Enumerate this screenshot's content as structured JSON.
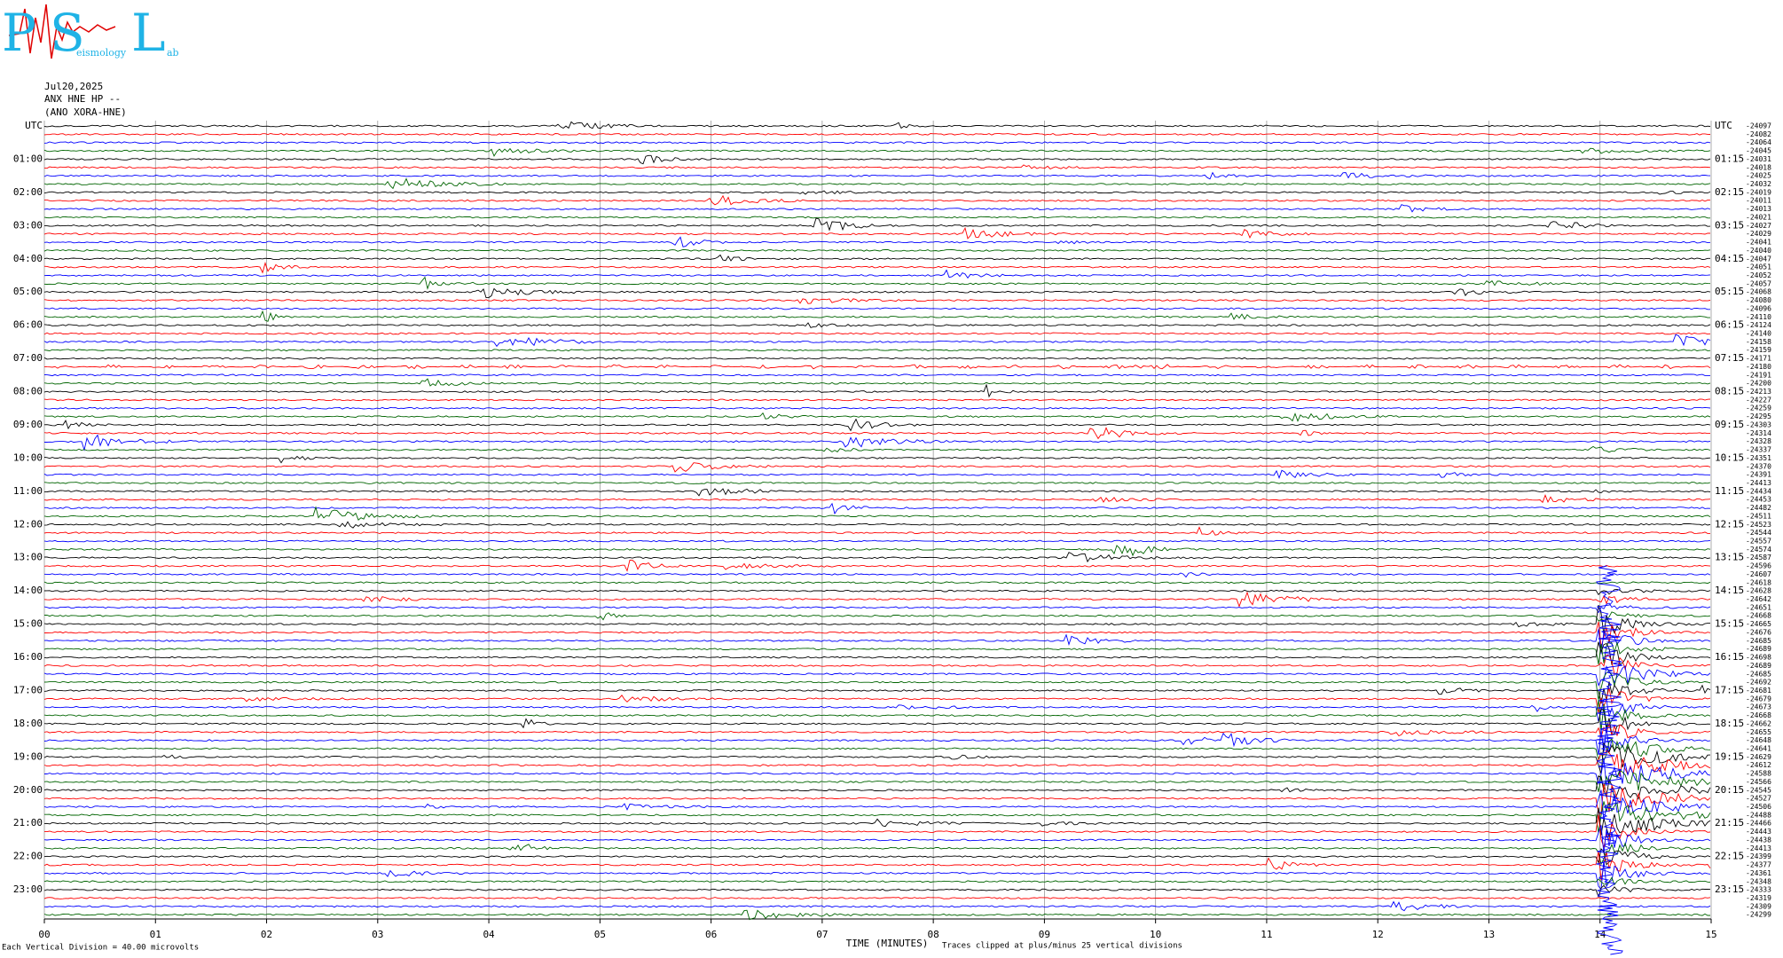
{
  "logo": {
    "letters": [
      "P",
      "S",
      "L"
    ],
    "small_words": [
      "eismology",
      "ab"
    ]
  },
  "header": {
    "date": "Jul20,2025",
    "station": "ANX HNE HP --",
    "network": "(ANO XORA-HNE)"
  },
  "left_labels": [
    "UTC",
    "01:00",
    "02:00",
    "03:00",
    "04:00",
    "05:00",
    "06:00",
    "07:00",
    "08:00",
    "09:00",
    "10:00",
    "11:00",
    "12:00",
    "13:00",
    "14:00",
    "15:00",
    "16:00",
    "17:00",
    "18:00",
    "19:00",
    "20:00",
    "21:00",
    "22:00",
    "23:00"
  ],
  "right_labels": [
    "UTC",
    "01:15",
    "02:15",
    "03:15",
    "04:15",
    "05:15",
    "06:15",
    "07:15",
    "08:15",
    "09:15",
    "10:15",
    "11:15",
    "12:15",
    "13:15",
    "14:15",
    "15:15",
    "16:15",
    "17:15",
    "18:15",
    "19:15",
    "20:15",
    "21:15",
    "22:15",
    "23:15"
  ],
  "trace_offsets": [
    -24097,
    -24082,
    -24064,
    -24045,
    -24031,
    -24018,
    -24025,
    -24032,
    -24019,
    -24011,
    -24013,
    -24021,
    -24027,
    -24029,
    -24041,
    -24040,
    -24047,
    -24051,
    -24052,
    -24057,
    -24068,
    -24080,
    -24096,
    -24110,
    -24124,
    -24140,
    -24158,
    -24159,
    -24171,
    -24180,
    -24191,
    -24200,
    -24213,
    -24227,
    -24259,
    -24295,
    -24303,
    -24314,
    -24328,
    -24337,
    -24351,
    -24370,
    -24391,
    -24413,
    -24434,
    -24453,
    -24482,
    -24511,
    -24523,
    -24544,
    -24557,
    -24574,
    -24587,
    -24596,
    -24607,
    -24618,
    -24628,
    -24642,
    -24651,
    -24668,
    -24665,
    -24676,
    -24685,
    -24689,
    -24698,
    -24689,
    -24685,
    -24692,
    -24681,
    -24679,
    -24673,
    -24668,
    -24662,
    -24655,
    -24648,
    -24641,
    -24629,
    -24612,
    -24588,
    -24566,
    -24545,
    -24527,
    -24506,
    -24488,
    -24466,
    -24443,
    -24438,
    -24413,
    -24399,
    -24377,
    -24361,
    -24348,
    -24333,
    -24319,
    -24309,
    -24299
  ],
  "trace_colors": [
    "#000000",
    "#ff0000",
    "#0000ff",
    "#006400"
  ],
  "x_labels": [
    "00",
    "01",
    "02",
    "03",
    "04",
    "05",
    "06",
    "07",
    "08",
    "09",
    "10",
    "11",
    "12",
    "13",
    "14",
    "15"
  ],
  "footer": {
    "scale": "Each Vertical Division =  40.00 microvolts",
    "x_title": "TIME (MINUTES)",
    "clip_note": "Traces clipped at plus/minus 25 vertical divisions"
  }
}
